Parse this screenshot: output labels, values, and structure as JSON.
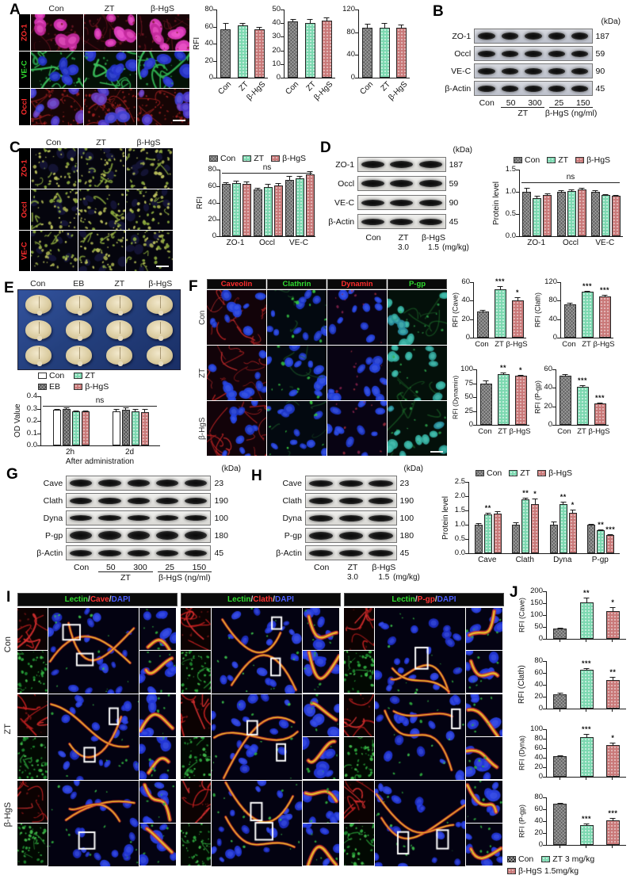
{
  "colors": {
    "con": "#616161",
    "zt": "#7bd8b0",
    "hgs": "#c97878",
    "eb": "#4f4f4f",
    "con_black": "#1a1a1a",
    "white": "#ffffff",
    "red_label": "#ff2d2d",
    "green_label": "#30dd30",
    "blue_label": "#4a5cff"
  },
  "panels": {
    "A": {
      "label": "A",
      "cols": [
        "Con",
        "ZT",
        "β-HgS"
      ],
      "rows": [
        {
          "label": "ZO-1",
          "color": "#ff2d2d",
          "tile": "zo1"
        },
        {
          "label": "VE-C",
          "color": "#30dd30",
          "tile": "vec"
        },
        {
          "label": "Occl",
          "color": "#ff2d2d",
          "tile": "occl"
        }
      ]
    },
    "B": {
      "label": "B"
    },
    "C": {
      "label": "C",
      "cols": [
        "Con",
        "ZT",
        "β-HgS"
      ],
      "rows": [
        {
          "label": "ZO-1",
          "color": "#ff2d2d",
          "tile": "ctile"
        },
        {
          "label": "Occl",
          "color": "#ff2d2d",
          "tile": "ctile"
        },
        {
          "label": "VE-C",
          "color": "#ff2d2d",
          "tile": "ctile"
        }
      ]
    },
    "D": {
      "label": "D"
    },
    "E": {
      "label": "E",
      "cols": [
        "Con",
        "EB",
        "ZT",
        "β-HgS"
      ]
    },
    "F": {
      "label": "F",
      "rows": [
        "Con",
        "ZT",
        "β-HgS"
      ],
      "cols": [
        {
          "label": "Caveolin",
          "color": "#ff2d2d",
          "tile": "cave"
        },
        {
          "label": "Clathrin",
          "color": "#30dd30",
          "tile": "clath"
        },
        {
          "label": "Dynamin",
          "color": "#ff2d2d",
          "tile": "dyna"
        },
        {
          "label": "P-gp",
          "color": "#30dd30",
          "tile": "pgp"
        }
      ]
    },
    "G": {
      "label": "G"
    },
    "H": {
      "label": "H"
    },
    "I": {
      "label": "I",
      "rows": [
        "Con",
        "ZT",
        "β-HgS"
      ],
      "headers": [
        [
          {
            "t": "Lectin",
            "c": "#30dd30"
          },
          {
            "t": "/",
            "c": "#d0d0d0"
          },
          {
            "t": "Cave",
            "c": "#ff3333"
          },
          {
            "t": "/",
            "c": "#d0d0d0"
          },
          {
            "t": "DAPI",
            "c": "#4a5cff"
          }
        ],
        [
          {
            "t": "Lectin",
            "c": "#30dd30"
          },
          {
            "t": "/",
            "c": "#d0d0d0"
          },
          {
            "t": "Clath",
            "c": "#ff3333"
          },
          {
            "t": "/",
            "c": "#d0d0d0"
          },
          {
            "t": "DAPI",
            "c": "#4a5cff"
          }
        ],
        [
          {
            "t": "Lectin",
            "c": "#30dd30"
          },
          {
            "t": "/",
            "c": "#d0d0d0"
          },
          {
            "t": "P-gp",
            "c": "#ff3333"
          },
          {
            "t": "/",
            "c": "#d0d0d0"
          },
          {
            "t": "DAPI",
            "c": "#4a5cff"
          }
        ]
      ]
    },
    "J": {
      "label": "J"
    }
  },
  "legends": {
    "c": [
      {
        "label": "Con",
        "key": "con"
      },
      {
        "label": "ZT",
        "key": "zt"
      },
      {
        "label": "β-HgS",
        "key": "hgs"
      }
    ],
    "d": [
      {
        "label": "Con",
        "key": "con"
      },
      {
        "label": "ZT",
        "key": "zt"
      },
      {
        "label": "β-HgS",
        "key": "hgs"
      }
    ],
    "e": [
      {
        "label": "Con",
        "key": "white"
      },
      {
        "label": "EB",
        "key": "eb"
      },
      {
        "label": "ZT",
        "key": "zt"
      },
      {
        "label": "β-HgS",
        "key": "hgs"
      }
    ],
    "h": [
      {
        "label": "Con",
        "key": "con"
      },
      {
        "label": "ZT",
        "key": "zt"
      },
      {
        "label": "β-HgS",
        "key": "hgs"
      }
    ],
    "j": [
      {
        "label": "Con",
        "key": "conB"
      },
      {
        "label": "ZT 3 mg/kg",
        "key": "zt"
      },
      {
        "label": "β-HgS 1.5mg/kg",
        "key": "hgs"
      }
    ]
  },
  "blots": {
    "B": {
      "kda_title": "(kDa)",
      "rows": [
        {
          "name": "ZO-1",
          "kda": "187",
          "bh": 9
        },
        {
          "name": "Occl",
          "kda": "59",
          "bh": 8
        },
        {
          "name": "VE-C",
          "kda": "90",
          "bh": 8
        },
        {
          "name": "β-Actin",
          "kda": "45",
          "bh": 8
        }
      ],
      "lanes": [
        "Con",
        "50",
        "300",
        "25",
        "150"
      ],
      "groups": [
        {
          "label": "ZT",
          "from": 1,
          "to": 2
        },
        {
          "label": "β-HgS (ng/ml)",
          "from": 3,
          "to": 4
        }
      ]
    },
    "D": {
      "kda_title": "(kDa)",
      "rows": [
        {
          "name": "ZO-1",
          "kda": "187",
          "bh": 9
        },
        {
          "name": "Occl",
          "kda": "59",
          "bh": 9
        },
        {
          "name": "VE-C",
          "kda": "90",
          "bh": 8
        },
        {
          "name": "β-Actin",
          "kda": "45",
          "bh": 8
        }
      ],
      "lanes": [
        "Con",
        "ZT",
        "β-HgS"
      ],
      "sub": {
        "labels": [
          "",
          "3.0",
          "1.5"
        ],
        "suffix": "(mg/kg)"
      }
    },
    "G": {
      "kda_title": "(kDa)",
      "rows": [
        {
          "name": "Cave",
          "kda": "23",
          "bh": 9
        },
        {
          "name": "Clath",
          "kda": "190",
          "bh": 8
        },
        {
          "name": "Dyna",
          "kda": "100",
          "bh": 7
        },
        {
          "name": "P-gp",
          "kda": "180",
          "bh": 11
        },
        {
          "name": "β-Actin",
          "kda": "45",
          "bh": 8
        }
      ],
      "lanes": [
        "Con",
        "50",
        "300",
        "25",
        "150"
      ],
      "groups": [
        {
          "label": "ZT",
          "from": 1,
          "to": 2
        },
        {
          "label": "β-HgS (ng/ml)",
          "from": 3,
          "to": 4
        }
      ]
    },
    "H": {
      "kda_title": "(kDa)",
      "rows": [
        {
          "name": "Cave",
          "kda": "23",
          "bh": 8
        },
        {
          "name": "Clath",
          "kda": "190",
          "bh": 8
        },
        {
          "name": "Dyna",
          "kda": "100",
          "bh": 8
        },
        {
          "name": "P-gp",
          "kda": "180",
          "bh": 10
        },
        {
          "name": "β-Actin",
          "kda": "45",
          "bh": 8
        }
      ],
      "lanes": [
        "Con",
        "ZT",
        "β-HgS"
      ],
      "sub": {
        "labels": [
          "",
          "3.0",
          "1.5"
        ],
        "suffix": "(mg/kg)"
      }
    }
  },
  "chart_data": [
    {
      "id": "a_rfi_1",
      "type": "bar",
      "title": "",
      "ylabel": "RFI",
      "ylim": [
        0,
        80
      ],
      "yticks": [
        "0",
        "20",
        "40",
        "60",
        "80"
      ],
      "categories": [
        "Con",
        "ZT",
        "β-HgS"
      ],
      "values": [
        57,
        61,
        57
      ],
      "errors": [
        7,
        3,
        3
      ],
      "sigs": [
        "",
        "",
        ""
      ],
      "bar_keys": [
        "con",
        "zt",
        "hgs"
      ]
    },
    {
      "id": "a_rfi_2",
      "type": "bar",
      "title": "",
      "ylabel": "",
      "ylim": [
        0,
        50
      ],
      "yticks": [
        "0",
        "10",
        "20",
        "30",
        "40",
        "50"
      ],
      "categories": [
        "Con",
        "ZT",
        "β-HgS"
      ],
      "values": [
        41,
        40,
        42
      ],
      "errors": [
        2,
        3,
        2
      ],
      "sigs": [
        "",
        "",
        ""
      ],
      "bar_keys": [
        "con",
        "zt",
        "hgs"
      ]
    },
    {
      "id": "a_rfi_3",
      "type": "bar",
      "title": "",
      "ylabel": "",
      "ylim": [
        0,
        120
      ],
      "yticks": [
        "0",
        "40",
        "80",
        "120"
      ],
      "categories": [
        "Con",
        "ZT",
        "β-HgS"
      ],
      "values": [
        88,
        88,
        88
      ],
      "errors": [
        7,
        9,
        5
      ],
      "sigs": [
        "",
        "",
        ""
      ],
      "bar_keys": [
        "con",
        "zt",
        "hgs"
      ]
    },
    {
      "id": "c_rfi",
      "type": "bar",
      "title": "",
      "ylabel": "RFI",
      "ylim": [
        0,
        80
      ],
      "yticks": [
        "0",
        "20",
        "40",
        "60",
        "80"
      ],
      "groups": [
        "ZO-1",
        "Occl",
        "VE-C"
      ],
      "ns": "ns",
      "series": [
        {
          "name": "Con",
          "key": "con",
          "values": [
            63,
            56,
            68
          ],
          "errors": [
            2,
            2,
            4
          ]
        },
        {
          "name": "ZT",
          "key": "zt",
          "values": [
            64,
            59,
            70
          ],
          "errors": [
            3,
            4,
            2
          ]
        },
        {
          "name": "β-HgS",
          "key": "hgs",
          "values": [
            63,
            61,
            74
          ],
          "errors": [
            3,
            3,
            4
          ]
        }
      ]
    },
    {
      "id": "d_protein",
      "type": "bar",
      "title": "",
      "ylabel": "Protein level",
      "ylim": [
        0,
        1.5
      ],
      "yticks": [
        "0.0",
        "0.5",
        "1.0",
        "1.5"
      ],
      "groups": [
        "ZO-1",
        "Occl",
        "VE-C"
      ],
      "ns": "ns",
      "series": [
        {
          "name": "Con",
          "key": "con",
          "values": [
            1.0,
            1.0,
            1.0
          ],
          "errors": [
            0.09,
            0.04,
            0.04
          ]
        },
        {
          "name": "ZT",
          "key": "zt",
          "values": [
            0.86,
            1.02,
            0.93
          ],
          "errors": [
            0.05,
            0.03,
            0.02
          ]
        },
        {
          "name": "β-HgS",
          "key": "hgs",
          "values": [
            0.93,
            1.06,
            0.91
          ],
          "errors": [
            0.04,
            0.03,
            0.02
          ]
        }
      ]
    },
    {
      "id": "e_od",
      "type": "bar",
      "title": "",
      "ylabel": "OD Value",
      "ylim": [
        0,
        0.4
      ],
      "yticks": [
        "0.0",
        "0.1",
        "0.2",
        "0.3",
        "0.4"
      ],
      "groups": [
        "2h",
        "2d"
      ],
      "ns": "ns",
      "xlabel": "After administration",
      "series": [
        {
          "name": "Con",
          "key": "white",
          "values": [
            0.29,
            0.28
          ],
          "errors": [
            0.01,
            0.02
          ]
        },
        {
          "name": "EB",
          "key": "eb",
          "values": [
            0.3,
            0.29
          ],
          "errors": [
            0.01,
            0.02
          ]
        },
        {
          "name": "ZT",
          "key": "zt",
          "values": [
            0.28,
            0.28
          ],
          "errors": [
            0.005,
            0.015
          ]
        },
        {
          "name": "β-HgS",
          "key": "hgs",
          "values": [
            0.28,
            0.27
          ],
          "errors": [
            0.005,
            0.03
          ]
        }
      ]
    },
    {
      "id": "f_cave",
      "type": "bar",
      "title": "",
      "ylabel": "RFI (Cave)",
      "ylim": [
        0,
        60
      ],
      "yticks": [
        "0",
        "20",
        "40",
        "60"
      ],
      "categories": [
        "Con",
        "ZT",
        "β-HgS"
      ],
      "values": [
        28,
        52,
        40
      ],
      "errors": [
        2,
        4,
        4
      ],
      "sigs": [
        "",
        "***",
        "*"
      ],
      "bar_keys": [
        "con",
        "zt",
        "hgs"
      ]
    },
    {
      "id": "f_clath",
      "type": "bar",
      "title": "",
      "ylabel": "RFI (Clath)",
      "ylim": [
        0,
        120
      ],
      "yticks": [
        "0",
        "40",
        "80",
        "120"
      ],
      "categories": [
        "Con",
        "ZT",
        "β-HgS"
      ],
      "values": [
        72,
        99,
        90
      ],
      "errors": [
        3,
        2,
        3
      ],
      "sigs": [
        "",
        "***",
        "***"
      ],
      "bar_keys": [
        "con",
        "zt",
        "hgs"
      ]
    },
    {
      "id": "f_dyna",
      "type": "bar",
      "title": "",
      "ylabel": "RFI (Dynamin)",
      "ylim": [
        0,
        100
      ],
      "yticks": [
        "0",
        "25",
        "50",
        "75",
        "100"
      ],
      "categories": [
        "Con",
        "ZT",
        "β-HgS"
      ],
      "values": [
        74,
        92,
        88
      ],
      "errors": [
        6,
        3,
        2
      ],
      "sigs": [
        "",
        "**",
        "*"
      ],
      "bar_keys": [
        "con",
        "zt",
        "hgs"
      ]
    },
    {
      "id": "f_pgp",
      "type": "bar",
      "title": "",
      "ylabel": "RFI (P-gp)",
      "ylim": [
        0,
        60
      ],
      "yticks": [
        "0",
        "20",
        "40",
        "60"
      ],
      "categories": [
        "Con",
        "ZT",
        "β-HgS"
      ],
      "values": [
        53,
        41,
        23
      ],
      "errors": [
        2,
        2,
        1
      ],
      "sigs": [
        "",
        "***",
        "***"
      ],
      "bar_keys": [
        "con",
        "zt",
        "hgs"
      ]
    },
    {
      "id": "h_protein",
      "type": "bar",
      "title": "",
      "ylabel": "Protein level",
      "ylim": [
        0,
        2.5
      ],
      "yticks": [
        "0.0",
        "0.5",
        "1.0",
        "1.5",
        "2.0",
        "2.5"
      ],
      "groups": [
        "Cave",
        "Clath",
        "Dyna",
        "P-gp"
      ],
      "series": [
        {
          "name": "Con",
          "key": "con",
          "values": [
            1.0,
            1.0,
            1.0,
            1.0
          ],
          "errors": [
            0.05,
            0.08,
            0.1,
            0.02
          ],
          "sigs": [
            "",
            "",
            "",
            ""
          ]
        },
        {
          "name": "ZT",
          "key": "zt",
          "values": [
            1.36,
            1.88,
            1.71,
            0.8
          ],
          "errors": [
            0.07,
            0.06,
            0.09,
            0.04
          ],
          "sigs": [
            "**",
            "**",
            "**",
            "**"
          ]
        },
        {
          "name": "β-HgS",
          "key": "hgs",
          "values": [
            1.38,
            1.73,
            1.42,
            0.63
          ],
          "errors": [
            0.08,
            0.2,
            0.12,
            0.04
          ],
          "sigs": [
            "",
            "*",
            "*",
            "***"
          ]
        }
      ]
    },
    {
      "id": "j_cave",
      "type": "bar",
      "title": "",
      "ylabel": "RFI (Cave)",
      "ylim": [
        0,
        200
      ],
      "yticks": [
        "0",
        "50",
        "100",
        "150",
        "200"
      ],
      "categories": [
        "Con",
        "ZT",
        "β-HgS"
      ],
      "values": [
        45,
        152,
        118
      ],
      "errors": [
        3,
        22,
        15
      ],
      "sigs": [
        "",
        "**",
        "*"
      ],
      "bar_keys": [
        "con",
        "zt",
        "hgs"
      ]
    },
    {
      "id": "j_clath",
      "type": "bar",
      "title": "",
      "ylabel": "RFI (Clath)",
      "ylim": [
        0,
        80
      ],
      "yticks": [
        "0",
        "20",
        "40",
        "60",
        "80"
      ],
      "categories": [
        "Con",
        "ZT",
        "β-HgS"
      ],
      "values": [
        24,
        66,
        48
      ],
      "errors": [
        3,
        2,
        5
      ],
      "sigs": [
        "",
        "***",
        "**"
      ],
      "bar_keys": [
        "con",
        "zt",
        "hgs"
      ]
    },
    {
      "id": "j_dyna",
      "type": "bar",
      "title": "",
      "ylabel": "RFI (Dyna)",
      "ylim": [
        0,
        100
      ],
      "yticks": [
        "0",
        "20",
        "40",
        "60",
        "80",
        "100"
      ],
      "categories": [
        "Con",
        "ZT",
        "β-HgS"
      ],
      "values": [
        43,
        83,
        66
      ],
      "errors": [
        2,
        7,
        6
      ],
      "sigs": [
        "",
        "***",
        "*"
      ],
      "bar_keys": [
        "con",
        "zt",
        "hgs"
      ]
    },
    {
      "id": "j_pgp",
      "type": "bar",
      "title": "",
      "ylabel": "RFI (P-gp)",
      "ylim": [
        0,
        80
      ],
      "yticks": [
        "0",
        "20",
        "40",
        "60",
        "80"
      ],
      "categories": [
        "Con",
        "ZT",
        "β-HgS"
      ],
      "values": [
        69,
        33,
        42
      ],
      "errors": [
        2,
        3,
        3
      ],
      "sigs": [
        "",
        "***",
        "***"
      ],
      "bar_keys": [
        "con",
        "zt",
        "hgs"
      ]
    }
  ]
}
